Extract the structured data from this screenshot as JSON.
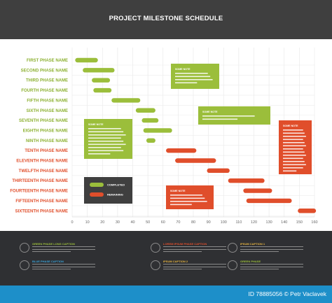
{
  "header": {
    "title": "PROJECT MILESTONE SCHEDULE"
  },
  "colors": {
    "green": "#9bbe3b",
    "red": "#e04e2b",
    "header_bg": "#3f3f3f",
    "footer_bg": "#2f3033",
    "label_green": "#8db132",
    "label_red": "#e04e2b"
  },
  "chart_data": {
    "type": "gantt",
    "x_ticks": [
      0,
      10,
      20,
      30,
      40,
      50,
      60,
      70,
      80,
      90,
      100,
      110,
      120,
      130,
      140,
      150,
      160
    ],
    "xlim": [
      0,
      160
    ],
    "grid": true,
    "tasks": [
      {
        "name": "FIRST PHASE NAME",
        "start": 2,
        "end": 17,
        "status": "completed"
      },
      {
        "name": "SECOND PHASE NAME",
        "start": 7,
        "end": 28,
        "status": "completed"
      },
      {
        "name": "THIRD PHASE NAME",
        "start": 13,
        "end": 25,
        "status": "completed"
      },
      {
        "name": "FOURTH PHASE NAME",
        "start": 14,
        "end": 26,
        "status": "completed"
      },
      {
        "name": "FIFTH PHASE NAME",
        "start": 26,
        "end": 45,
        "status": "completed"
      },
      {
        "name": "SIXTH PHASE NAME",
        "start": 42,
        "end": 55,
        "status": "completed"
      },
      {
        "name": "SEVENTH PHASE NAME",
        "start": 46,
        "end": 57,
        "status": "completed"
      },
      {
        "name": "EIGHTH PHASE NAME",
        "start": 47,
        "end": 66,
        "status": "completed"
      },
      {
        "name": "NINTH PHASE NAME",
        "start": 49,
        "end": 55,
        "status": "completed"
      },
      {
        "name": "TENTH PHASE NAME",
        "start": 62,
        "end": 82,
        "status": "remaining"
      },
      {
        "name": "ELEVENTH PHASE NAME",
        "start": 68,
        "end": 95,
        "status": "remaining"
      },
      {
        "name": "TWELFTH PHASE NAME",
        "start": 89,
        "end": 104,
        "status": "remaining"
      },
      {
        "name": "THIRTEENTH PHASE NAME",
        "start": 103,
        "end": 127,
        "status": "remaining"
      },
      {
        "name": "FOURTEENTH PHASE NAME",
        "start": 113,
        "end": 132,
        "status": "remaining"
      },
      {
        "name": "FIFTEENTH PHASE NAME",
        "start": 115,
        "end": 145,
        "status": "remaining"
      },
      {
        "name": "SIXTEENTH PHASE NAME",
        "start": 149,
        "end": 161,
        "status": "remaining"
      }
    ],
    "legend": [
      {
        "label": "COMPLETED",
        "status": "completed"
      },
      {
        "label": "REMAINING",
        "status": "remaining"
      }
    ],
    "notes": [
      {
        "title": "SOME NOTE",
        "color": "green"
      },
      {
        "title": "SOME NOTE",
        "color": "green"
      },
      {
        "title": "SOME NOTE",
        "color": "green"
      },
      {
        "title": "SOME NOTE",
        "color": "red"
      },
      {
        "title": "SOME NOTE",
        "color": "red"
      }
    ]
  },
  "footer": {
    "items": [
      {
        "title": "GREEN PHASE LONG CAPTION",
        "color": "green"
      },
      {
        "title": "LOREM IPSUM PHASE CAPTION",
        "color": "red"
      },
      {
        "title": "IPSUM CAPTION 1",
        "color": "yellow"
      },
      {
        "title": "BLUE PHASE CAPTION",
        "color": "blue"
      },
      {
        "title": "IPSUM CAPTION 2",
        "color": "yellow"
      },
      {
        "title": "GREEN PHASE",
        "color": "green"
      }
    ]
  },
  "stock": {
    "credit": "ID 78885056 © Petr Vaclavek"
  }
}
